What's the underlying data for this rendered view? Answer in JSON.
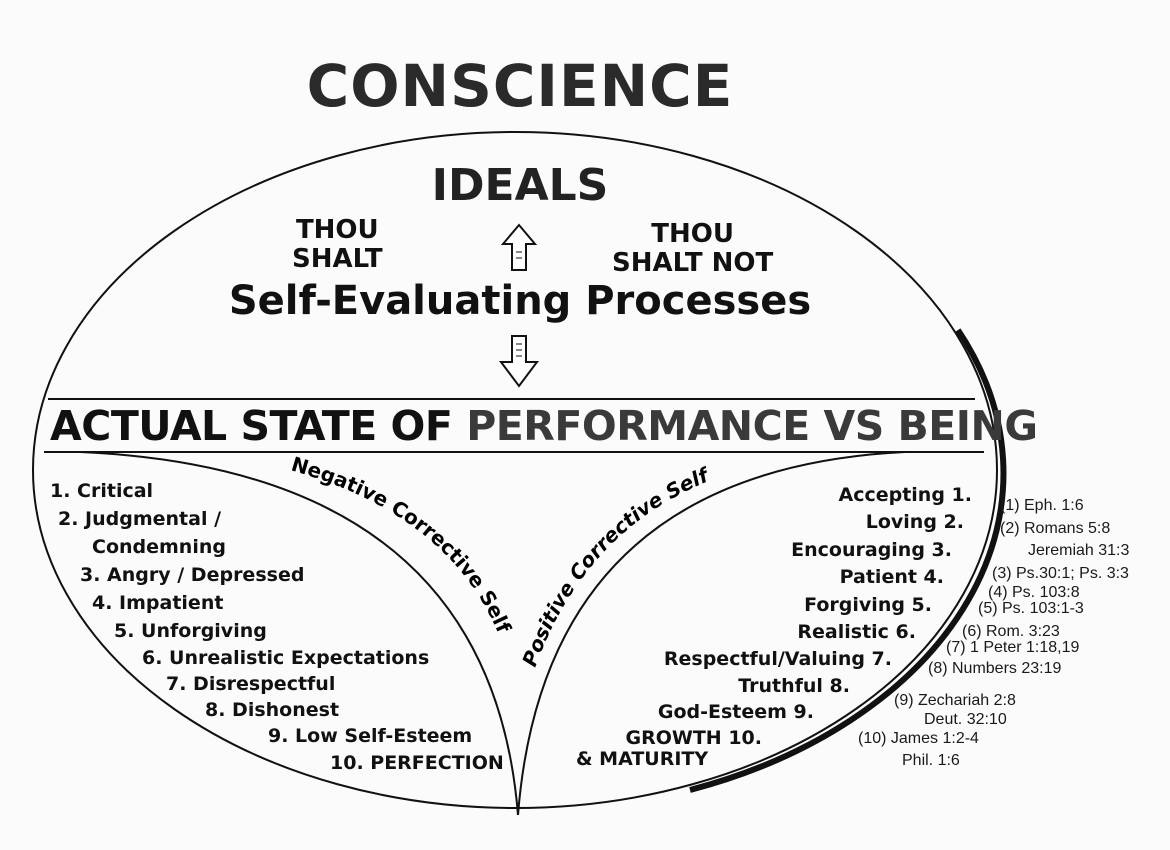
{
  "title": "CONSCIENCE",
  "ideals": "IDEALS",
  "thou_shalt": [
    "THOU",
    "SHALT"
  ],
  "thou_shalt_not": [
    "THOU",
    "SHALT NOT"
  ],
  "process": "Self-Evaluating Processes",
  "actual_state": {
    "part1": "ACTUAL STATE OF",
    "part2": "PERFORMANCE VS BEING"
  },
  "negative_label": "Negative Corrective Self",
  "positive_label": "Positive Corrective Self",
  "negative_items": [
    "1.  Critical",
    "2.  Judgmental /",
    "Condemning",
    "3.  Angry / Depressed",
    "4.  Impatient",
    "5.  Unforgiving",
    "6.  Unrealistic Expectations",
    "7.  Disrespectful",
    "8.  Dishonest",
    "9.  Low Self-Esteem",
    "10.  PERFECTION"
  ],
  "positive_items": [
    "Accepting  1.",
    "Loving  2.",
    "Encouraging  3.",
    "Patient  4.",
    "Forgiving  5.",
    "Realistic  6.",
    "Respectful/Valuing  7.",
    "Truthful  8.",
    "God-Esteem  9.",
    "GROWTH  10.",
    "& MATURITY"
  ],
  "references": [
    "(1) Eph. 1:6",
    "(2) Romans 5:8",
    "Jeremiah 31:3",
    "(3) Ps.30:1; Ps. 3:3",
    "(4) Ps. 103:8",
    "(5) Ps. 103:1-3",
    "(6) Rom. 3:23",
    "(7) 1 Peter 1:18,19",
    "(8) Numbers 23:19",
    "(9) Zechariah 2:8",
    "Deut. 32:10",
    "(10) James 1:2-4",
    "Phil. 1:6"
  ]
}
